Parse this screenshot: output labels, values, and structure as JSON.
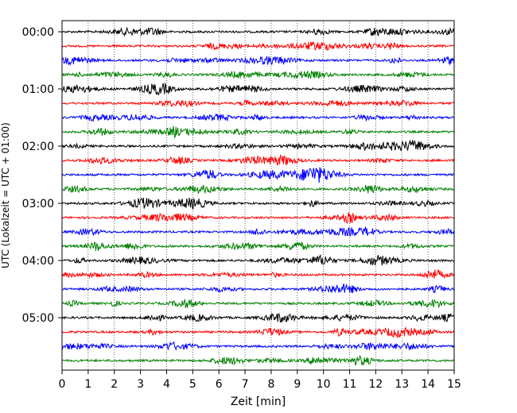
{
  "chart_data": {
    "type": "line",
    "title": "",
    "xlabel": "Zeit  [min]",
    "ylabel": "UTC (Lokalzeit = UTC + 01:00)",
    "xlim": [
      0,
      15
    ],
    "x_ticks": [
      "0",
      "1",
      "2",
      "3",
      "4",
      "5",
      "6",
      "7",
      "8",
      "9",
      "10",
      "11",
      "12",
      "13",
      "14",
      "15"
    ],
    "y_tick_labels": [
      "00:00",
      "01:00",
      "02:00",
      "03:00",
      "04:00",
      "05:00"
    ],
    "grid": "vertical dotted lines at each minute",
    "trace_color_cycle": [
      "#000000",
      "#ff0000",
      "#0000ff",
      "#008000"
    ],
    "traces_start": "00:00",
    "trace_interval_minutes": 15,
    "trace_count": 24,
    "series": [
      {
        "offset": "00:00",
        "color": "#000000"
      },
      {
        "offset": "00:15",
        "color": "#ff0000"
      },
      {
        "offset": "00:30",
        "color": "#0000ff"
      },
      {
        "offset": "00:45",
        "color": "#008000"
      },
      {
        "offset": "01:00",
        "color": "#000000"
      },
      {
        "offset": "01:15",
        "color": "#ff0000"
      },
      {
        "offset": "01:30",
        "color": "#0000ff"
      },
      {
        "offset": "01:45",
        "color": "#008000"
      },
      {
        "offset": "02:00",
        "color": "#000000"
      },
      {
        "offset": "02:15",
        "color": "#ff0000"
      },
      {
        "offset": "02:30",
        "color": "#0000ff"
      },
      {
        "offset": "02:45",
        "color": "#008000"
      },
      {
        "offset": "03:00",
        "color": "#000000"
      },
      {
        "offset": "03:15",
        "color": "#ff0000"
      },
      {
        "offset": "03:30",
        "color": "#0000ff"
      },
      {
        "offset": "03:45",
        "color": "#008000"
      },
      {
        "offset": "04:00",
        "color": "#000000"
      },
      {
        "offset": "04:15",
        "color": "#ff0000"
      },
      {
        "offset": "04:30",
        "color": "#0000ff"
      },
      {
        "offset": "04:45",
        "color": "#008000"
      },
      {
        "offset": "05:00",
        "color": "#000000"
      },
      {
        "offset": "05:15",
        "color": "#ff0000"
      },
      {
        "offset": "05:30",
        "color": "#0000ff"
      },
      {
        "offset": "05:45",
        "color": "#008000"
      }
    ]
  }
}
